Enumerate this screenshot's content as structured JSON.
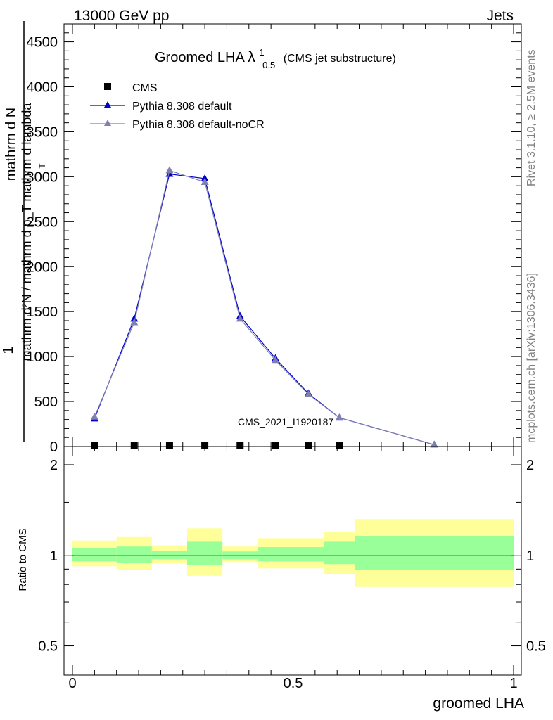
{
  "header": {
    "left": "13000 GeV pp",
    "right": "Jets"
  },
  "side_labels": {
    "rivet": "Rivet 3.1.10, ≥ 2.5M events",
    "mcplots": "mcplots.cern.ch [arXiv:1306.3436]"
  },
  "chart_data": [
    {
      "type": "line",
      "title": {
        "main": "Groomed LHA",
        "lambda": "λ",
        "sup": "1",
        "sub": "0.5",
        "suffix": "(CMS jet substructure)"
      },
      "ylabel": {
        "prefix": "1",
        "numerator": "mathrm d N",
        "denominator": "mathrm d²N / mathrm d p_T mathrm d lambda",
        "sub": "T"
      },
      "xlim": [
        0,
        1
      ],
      "ylim": [
        0,
        4700
      ],
      "yticks": [
        {
          "v": 0,
          "label": "0"
        },
        {
          "v": 500,
          "label": "500"
        },
        {
          "v": 1000,
          "label": "1000"
        },
        {
          "v": 1500,
          "label": "1500"
        },
        {
          "v": 2000,
          "label": "2000"
        },
        {
          "v": 2500,
          "label": "2500"
        },
        {
          "v": 3000,
          "label": "3000"
        },
        {
          "v": 3500,
          "label": "3500"
        },
        {
          "v": 4000,
          "label": "4000"
        },
        {
          "v": 4500,
          "label": "4500"
        }
      ],
      "watermark": "CMS_2021_I1920187",
      "legend_position": "top-left",
      "series": [
        {
          "name": "CMS",
          "marker": "square",
          "color": "#000000",
          "x": [
            0.05,
            0.14,
            0.22,
            0.3,
            0.38,
            0.46,
            0.535,
            0.605
          ],
          "y": [
            5,
            5,
            5,
            5,
            5,
            5,
            5,
            5
          ]
        },
        {
          "name": "Pythia 8.308 default",
          "marker": "triangle",
          "color": "#0000cc",
          "x": [
            0.05,
            0.14,
            0.22,
            0.3,
            0.38,
            0.46,
            0.535,
            0.605,
            0.82
          ],
          "y": [
            310,
            1420,
            3030,
            2980,
            1450,
            980,
            590,
            320,
            20
          ]
        },
        {
          "name": "Pythia 8.308 default-noCR",
          "marker": "triangle",
          "color": "#8080b0",
          "x": [
            0.05,
            0.14,
            0.22,
            0.3,
            0.38,
            0.46,
            0.535,
            0.605,
            0.82
          ],
          "y": [
            330,
            1380,
            3070,
            2940,
            1420,
            960,
            580,
            320,
            20
          ]
        }
      ]
    },
    {
      "type": "area",
      "ylabel": "Ratio to CMS",
      "xlabel": "groomed LHA",
      "xlim": [
        0,
        1
      ],
      "ylim": [
        0.4,
        2.3
      ],
      "yscale": "log",
      "yticks": [
        {
          "v": 0.5,
          "label": "0.5"
        },
        {
          "v": 1,
          "label": "1"
        },
        {
          "v": 2,
          "label": "2"
        }
      ],
      "xticks": [
        {
          "v": 0,
          "label": "0"
        },
        {
          "v": 0.5,
          "label": "0.5"
        },
        {
          "v": 1,
          "label": "1"
        }
      ],
      "band_colors": {
        "outer": "#ffff99",
        "inner": "#99ff99"
      },
      "bins": [
        {
          "lo": 0.0,
          "hi": 0.1,
          "in_lo": 0.955,
          "in_hi": 1.06,
          "out_lo": 0.92,
          "out_hi": 1.12
        },
        {
          "lo": 0.1,
          "hi": 0.18,
          "in_lo": 0.945,
          "in_hi": 1.07,
          "out_lo": 0.895,
          "out_hi": 1.15
        },
        {
          "lo": 0.18,
          "hi": 0.26,
          "in_lo": 0.97,
          "in_hi": 1.035,
          "out_lo": 0.94,
          "out_hi": 1.08
        },
        {
          "lo": 0.26,
          "hi": 0.34,
          "in_lo": 0.93,
          "in_hi": 1.11,
          "out_lo": 0.855,
          "out_hi": 1.23
        },
        {
          "lo": 0.34,
          "hi": 0.42,
          "in_lo": 0.97,
          "in_hi": 1.03,
          "out_lo": 0.95,
          "out_hi": 1.07
        },
        {
          "lo": 0.42,
          "hi": 0.57,
          "in_lo": 0.955,
          "in_hi": 1.065,
          "out_lo": 0.905,
          "out_hi": 1.14
        },
        {
          "lo": 0.57,
          "hi": 0.64,
          "in_lo": 0.935,
          "in_hi": 1.11,
          "out_lo": 0.865,
          "out_hi": 1.2
        },
        {
          "lo": 0.64,
          "hi": 1.0,
          "in_lo": 0.895,
          "in_hi": 1.155,
          "out_lo": 0.785,
          "out_hi": 1.32
        }
      ]
    }
  ]
}
